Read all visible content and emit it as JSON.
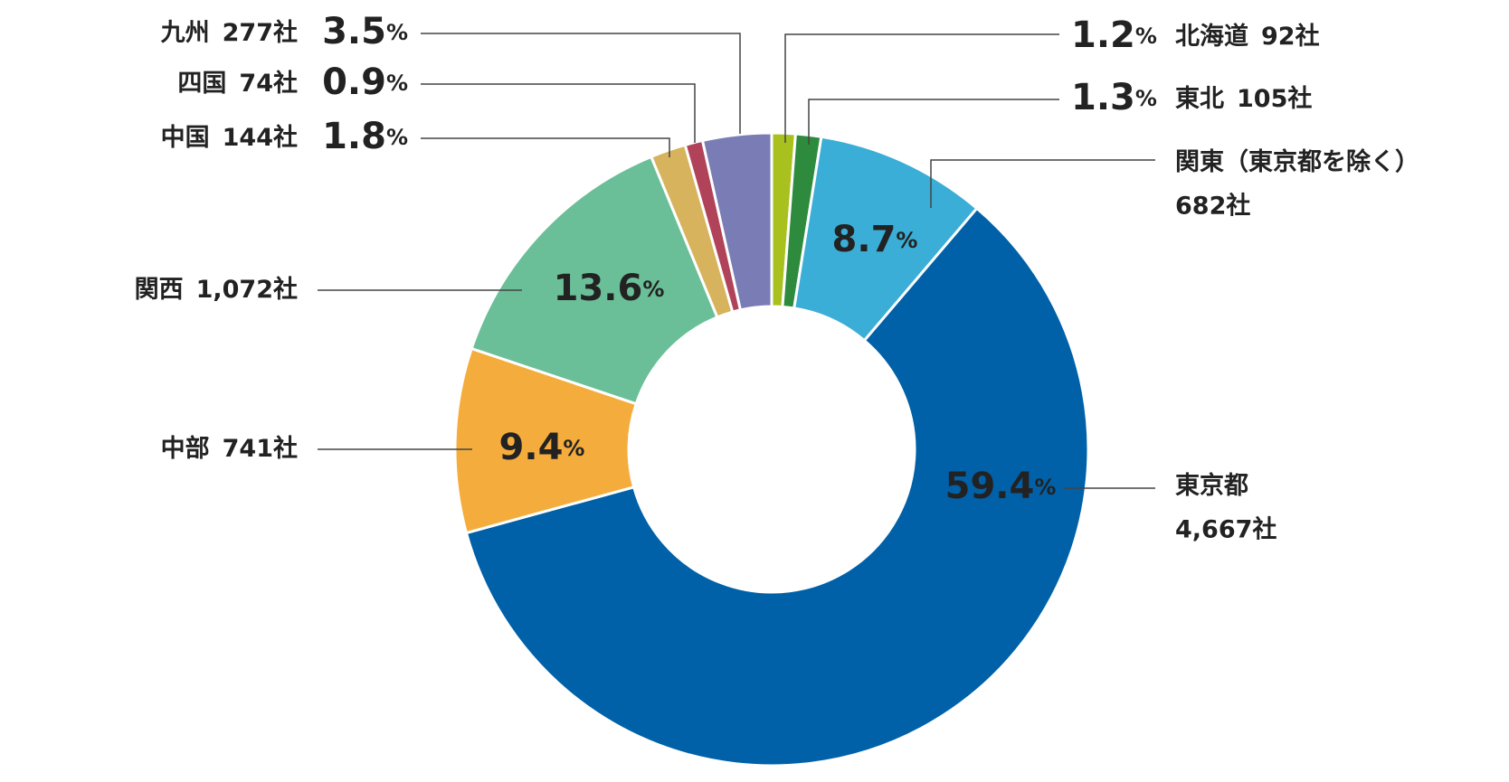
{
  "chart_data": {
    "type": "donut",
    "categories": [
      "北海道",
      "東北",
      "関東（東京都を除く）",
      "東京都",
      "中部",
      "関西",
      "中国",
      "四国",
      "九州"
    ],
    "values": [
      1.2,
      1.3,
      8.7,
      59.4,
      9.4,
      13.6,
      1.8,
      0.9,
      3.5
    ],
    "value_labels": [
      "1.2%",
      "1.3%",
      "8.7%",
      "59.4%",
      "9.4%",
      "13.6%",
      "1.8%",
      "0.9%",
      "3.5%"
    ],
    "count_labels": [
      "92社",
      "105社",
      "682社",
      "4,667社",
      "741社",
      "1,072社",
      "144社",
      "74社",
      "277社"
    ],
    "colors": [
      "#a9c11f",
      "#2e8b3e",
      "#3aaed6",
      "#0061a8",
      "#f4ad3d",
      "#6abf98",
      "#d6b35c",
      "#b0435a",
      "#7a7db5"
    ]
  }
}
